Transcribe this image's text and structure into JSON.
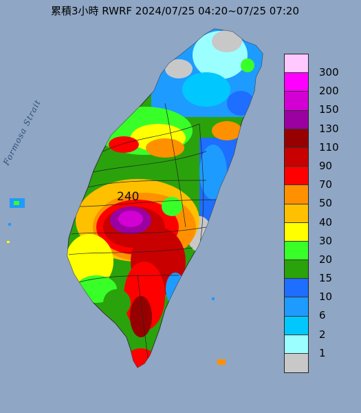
{
  "title": "累積3小時 RWRF 2024/07/25 04:20~07/25 07:20",
  "strait_label": "Formosa Strait",
  "peak_value": "240",
  "legend": {
    "labels": [
      "300",
      "200",
      "150",
      "130",
      "110",
      "90",
      "70",
      "50",
      "40",
      "30",
      "20",
      "15",
      "10",
      "6",
      "2",
      "1"
    ],
    "colors": [
      "#ffc8ff",
      "#ff00ff",
      "#d200d2",
      "#9b00a0",
      "#960000",
      "#c80000",
      "#ff0000",
      "#ff9100",
      "#ffc000",
      "#ffff00",
      "#39ff28",
      "#2aa20c",
      "#1e6eff",
      "#1e9bff",
      "#00c8ff",
      "#9bffff",
      "#c8c8c8"
    ]
  },
  "colors": {
    "sea": "#8fa6c4",
    "no_rain_land": "#c8c8c8"
  }
}
